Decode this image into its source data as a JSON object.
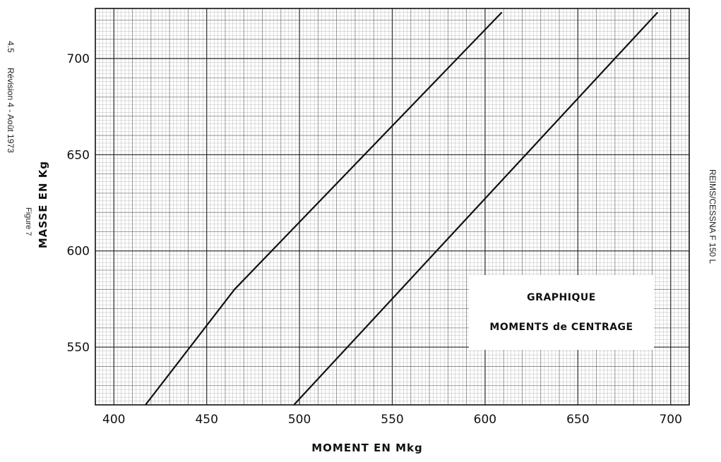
{
  "page": {
    "left_margin": {
      "page_number": "4.5",
      "revision": "Révision 4 - Août 1973",
      "figure": "Figure 7"
    },
    "right_margin": {
      "header": "REIMS/CESSNA F 150 L"
    }
  },
  "chart_data": {
    "type": "line",
    "title": "GRAPHIQUE",
    "subtitle": "MOMENTS de CENTRAGE",
    "xlabel": "MOMENT EN Mkg",
    "ylabel": "MASSE EN Kg",
    "xlim": [
      390,
      710
    ],
    "ylim": [
      520,
      726
    ],
    "xticks": [
      400,
      450,
      500,
      550,
      600,
      650,
      700
    ],
    "yticks": [
      550,
      600,
      650,
      700
    ],
    "grid": true,
    "legend_position": "bottom-right",
    "colors": {
      "line": "#111111",
      "grid": "#555555",
      "background": "#ffffff"
    },
    "series": [
      {
        "x": [
          417,
          465,
          609
        ],
        "y": [
          520,
          580,
          724
        ]
      },
      {
        "x": [
          497,
          693
        ],
        "y": [
          520,
          724
        ]
      }
    ]
  }
}
